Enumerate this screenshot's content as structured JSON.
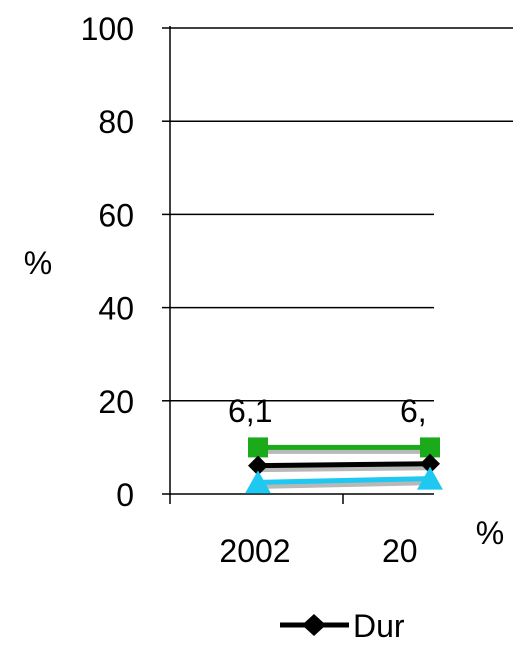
{
  "chart_data": {
    "type": "line",
    "title": "",
    "xlabel": "",
    "ylabel": "%",
    "right_axis_label": "%",
    "ylim": [
      0,
      100
    ],
    "yticks": [
      "0",
      "20",
      "40",
      "60",
      "80",
      "100"
    ],
    "grid": true,
    "categories": [
      "2002",
      "20"
    ],
    "series": [
      {
        "name": "Dur",
        "marker": "diamond",
        "color": "#000000",
        "values": [
          6.1,
          6.5
        ]
      },
      {
        "name": "",
        "marker": "square",
        "color": "#1aaa1a",
        "values": [
          10.0,
          10.0
        ]
      },
      {
        "name": "",
        "marker": "triangle",
        "color": "#1ec8f0",
        "values": [
          2.5,
          3.3
        ]
      }
    ],
    "data_labels": [
      "6,1",
      "6,"
    ],
    "legend": {
      "placement": "bottom",
      "entries": [
        "Dur"
      ]
    }
  }
}
